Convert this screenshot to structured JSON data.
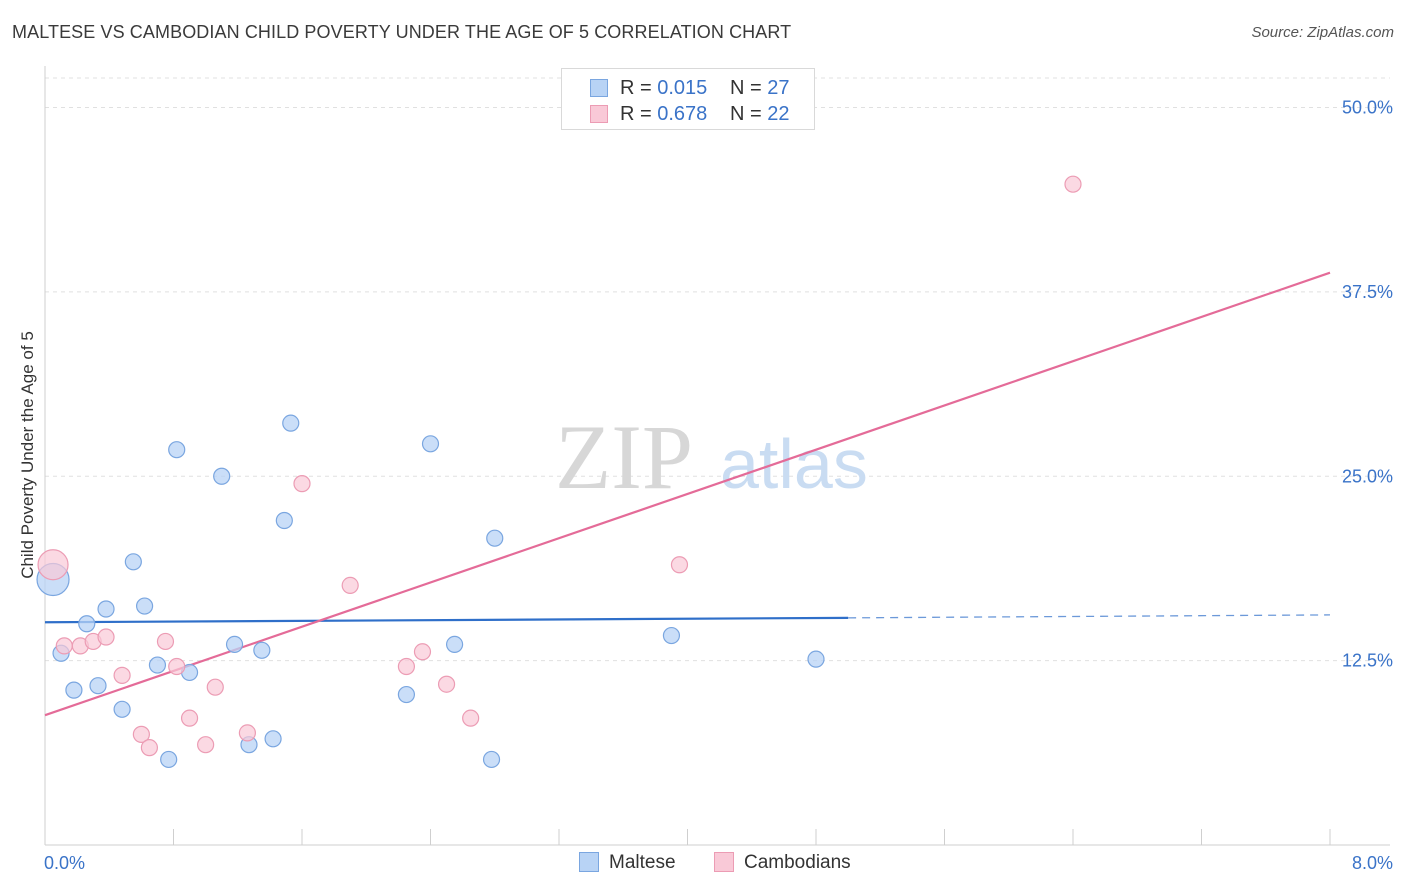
{
  "header": {
    "title": "MALTESE VS CAMBODIAN CHILD POVERTY UNDER THE AGE OF 5 CORRELATION CHART",
    "source": "Source: ZipAtlas.com"
  },
  "watermark": {
    "zip": "ZIP",
    "atlas": "atlas"
  },
  "legend": {
    "rows": [
      {
        "r_label": "R = ",
        "r_value": "0.015",
        "n_label": "N = ",
        "n_value": "27"
      },
      {
        "r_label": "R = ",
        "r_value": "0.678",
        "n_label": "N = ",
        "n_value": "22"
      }
    ]
  },
  "colors": {
    "maltese_fill": "#b8d3f5",
    "maltese_stroke": "#7aa6e0",
    "maltese_line": "#2f6fc9",
    "cambodian_fill": "#f9c9d7",
    "cambodian_stroke": "#ec9cb4",
    "cambodian_line": "#e46b98",
    "grid": "#e0e0e0",
    "axis_text": "#3a73c8"
  },
  "chart_data": {
    "type": "scatter",
    "title": "MALTESE VS CAMBODIAN CHILD POVERTY UNDER THE AGE OF 5 CORRELATION CHART",
    "xlabel": "",
    "ylabel": "Child Poverty Under the Age of 5",
    "xlim": [
      0,
      8
    ],
    "ylim": [
      0,
      52
    ],
    "x_tick_labels": [
      "0.0%",
      "8.0%"
    ],
    "y_ticks": [
      12.5,
      25.0,
      37.5,
      50.0
    ],
    "y_tick_labels": [
      "12.5%",
      "25.0%",
      "37.5%",
      "50.0%"
    ],
    "grid": true,
    "legend_position": "top-center",
    "series": [
      {
        "name": "Maltese",
        "R": 0.015,
        "N": 27,
        "points": [
          [
            0.05,
            18.0
          ],
          [
            0.1,
            13.0
          ],
          [
            0.18,
            10.5
          ],
          [
            0.26,
            15.0
          ],
          [
            0.33,
            10.8
          ],
          [
            0.38,
            16.0
          ],
          [
            0.48,
            9.2
          ],
          [
            0.55,
            19.2
          ],
          [
            0.62,
            16.2
          ],
          [
            0.7,
            12.2
          ],
          [
            0.77,
            5.8
          ],
          [
            0.82,
            26.8
          ],
          [
            0.9,
            11.7
          ],
          [
            1.1,
            25.0
          ],
          [
            1.18,
            13.6
          ],
          [
            1.27,
            6.8
          ],
          [
            1.35,
            13.2
          ],
          [
            1.42,
            7.2
          ],
          [
            1.49,
            22.0
          ],
          [
            1.53,
            28.6
          ],
          [
            2.25,
            10.2
          ],
          [
            2.4,
            27.2
          ],
          [
            2.55,
            13.6
          ],
          [
            2.78,
            5.8
          ],
          [
            2.8,
            20.8
          ],
          [
            3.9,
            14.2
          ],
          [
            4.8,
            12.6
          ]
        ],
        "trend": {
          "x_start": 0.0,
          "x_end": 5.0,
          "y_start": 15.1,
          "y_end": 15.4,
          "dashed_to_x": 8.0,
          "dashed_y_end": 15.6
        }
      },
      {
        "name": "Cambodians",
        "R": 0.678,
        "N": 22,
        "points": [
          [
            0.05,
            19.0
          ],
          [
            0.12,
            13.5
          ],
          [
            0.22,
            13.5
          ],
          [
            0.3,
            13.8
          ],
          [
            0.38,
            14.1
          ],
          [
            0.48,
            11.5
          ],
          [
            0.6,
            7.5
          ],
          [
            0.65,
            6.6
          ],
          [
            0.75,
            13.8
          ],
          [
            0.82,
            12.1
          ],
          [
            0.9,
            8.6
          ],
          [
            1.0,
            6.8
          ],
          [
            1.06,
            10.7
          ],
          [
            1.26,
            7.6
          ],
          [
            1.6,
            24.5
          ],
          [
            1.9,
            17.6
          ],
          [
            2.25,
            12.1
          ],
          [
            2.35,
            13.1
          ],
          [
            2.5,
            10.9
          ],
          [
            2.65,
            8.6
          ],
          [
            3.95,
            19.0
          ],
          [
            6.4,
            44.8
          ]
        ],
        "trend": {
          "x_start": 0.0,
          "x_end": 8.0,
          "y_start": 8.8,
          "y_end": 38.8
        }
      }
    ]
  },
  "bottom_legend": {
    "items": [
      {
        "label": "Maltese"
      },
      {
        "label": "Cambodians"
      }
    ]
  }
}
